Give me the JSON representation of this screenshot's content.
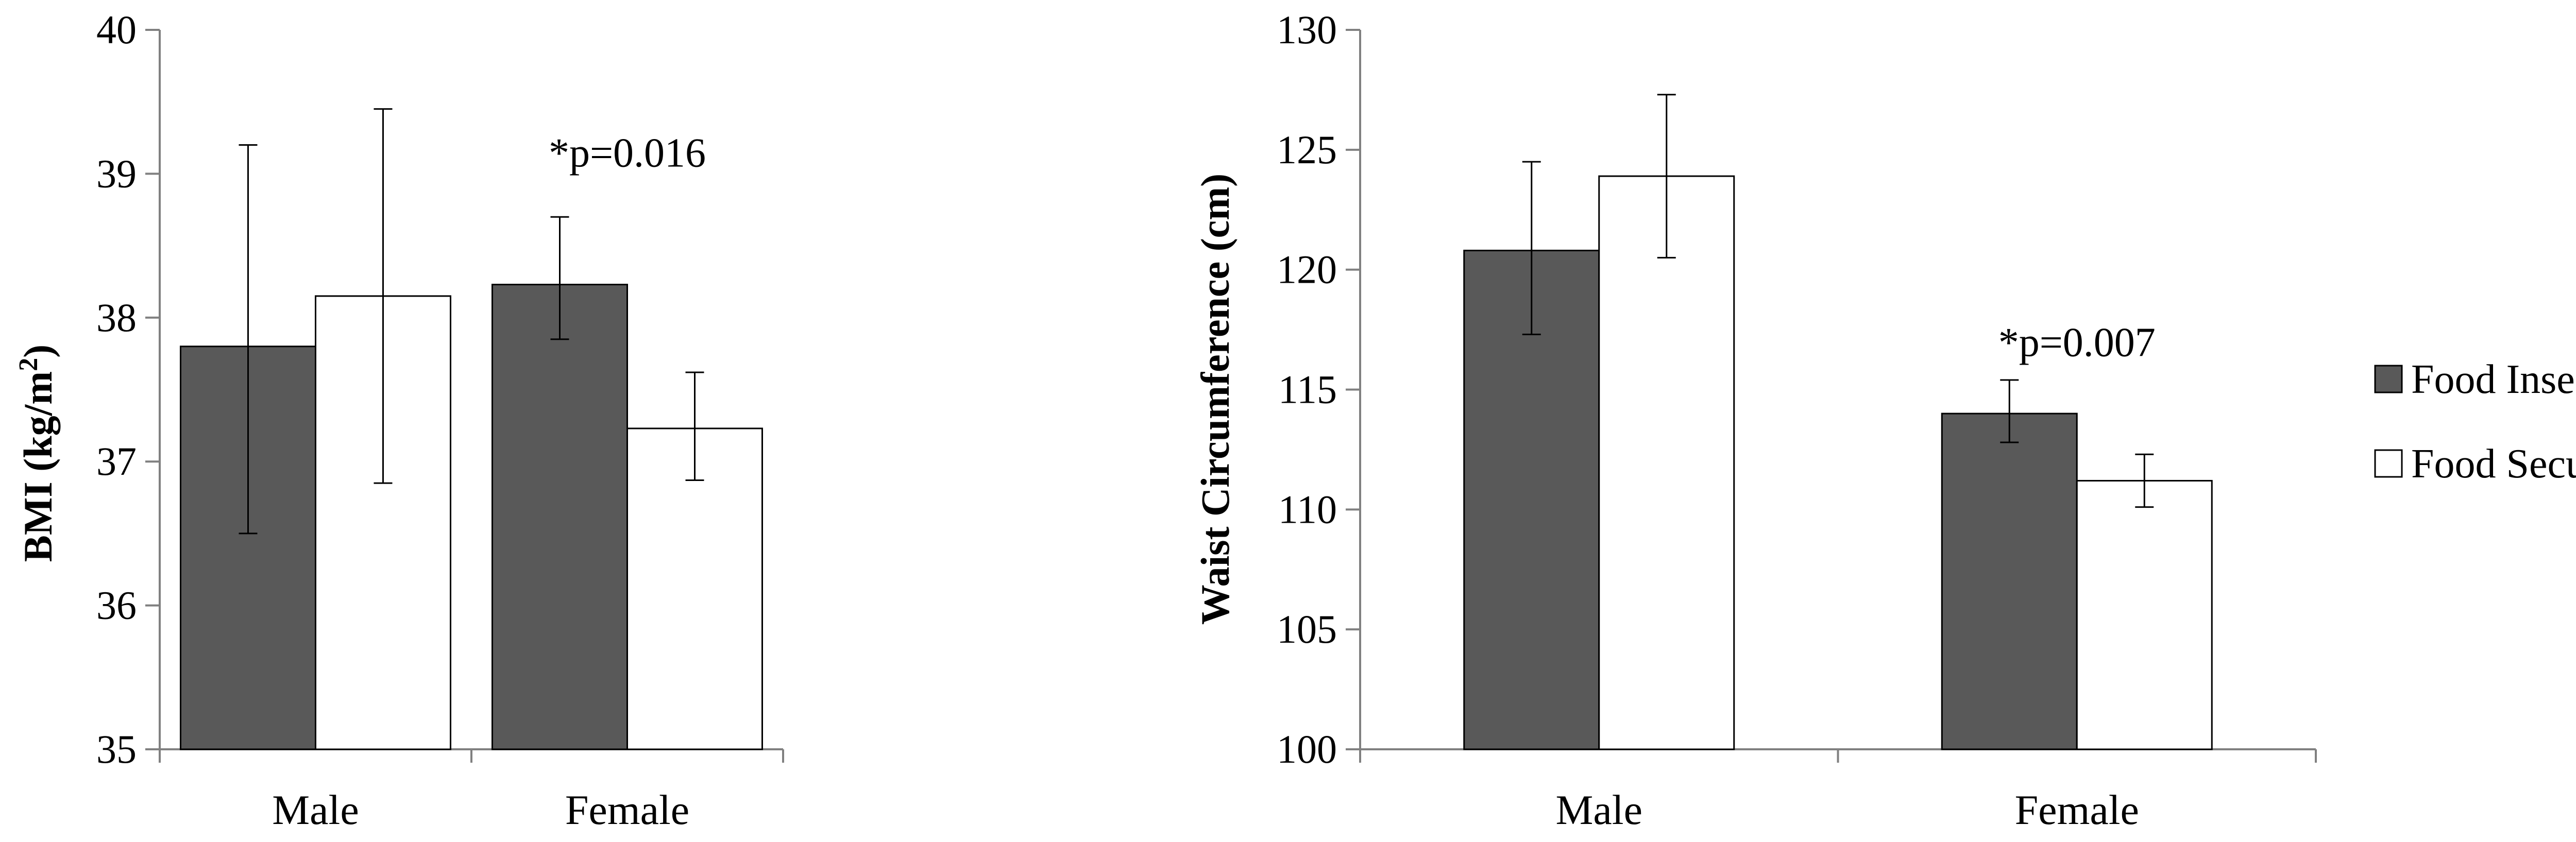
{
  "legend": {
    "placement": "right",
    "entries": [
      {
        "label": "Food Insecure",
        "color": "#595959"
      },
      {
        "label": "Food Secure",
        "color": "#ffffff"
      }
    ]
  },
  "chart_data": [
    {
      "type": "bar",
      "categories": [
        "Male",
        "Female"
      ],
      "ylabel": "BMI (kg/m²)",
      "ylabel_main": "BMI (kg/m",
      "ylabel_sup": "2",
      "ylabel_end": ")",
      "ylim": [
        35,
        40
      ],
      "yticks": [
        "35",
        "36",
        "37",
        "38",
        "39",
        "40"
      ],
      "grid": false,
      "annotation": {
        "text": "*p=0.016",
        "category": "Female",
        "y": 39.15
      },
      "series": [
        {
          "name": "Food Insecure",
          "color": "#595959",
          "values": [
            37.8,
            38.23
          ],
          "error_low": [
            36.5,
            37.85
          ],
          "error_high": [
            39.2,
            38.7
          ]
        },
        {
          "name": "Food Secure",
          "color": "#ffffff",
          "values": [
            38.15,
            37.23
          ],
          "error_low": [
            36.85,
            36.87
          ],
          "error_high": [
            39.45,
            37.62
          ]
        }
      ]
    },
    {
      "type": "bar",
      "categories": [
        "Male",
        "Female"
      ],
      "ylabel": "Waist Circumference (cm)",
      "ylim": [
        100,
        130
      ],
      "yticks": [
        "100",
        "105",
        "110",
        "115",
        "120",
        "125",
        "130"
      ],
      "grid": false,
      "annotation": {
        "text": "*p=0.007",
        "category": "Female",
        "y": 117
      },
      "series": [
        {
          "name": "Food Insecure",
          "color": "#595959",
          "values": [
            120.8,
            114
          ],
          "error_low": [
            117.3,
            112.8
          ],
          "error_high": [
            124.5,
            115.4
          ]
        },
        {
          "name": "Food Secure",
          "color": "#ffffff",
          "values": [
            123.9,
            111.2
          ],
          "error_low": [
            120.5,
            110.1
          ],
          "error_high": [
            127.3,
            112.3
          ]
        }
      ]
    }
  ]
}
